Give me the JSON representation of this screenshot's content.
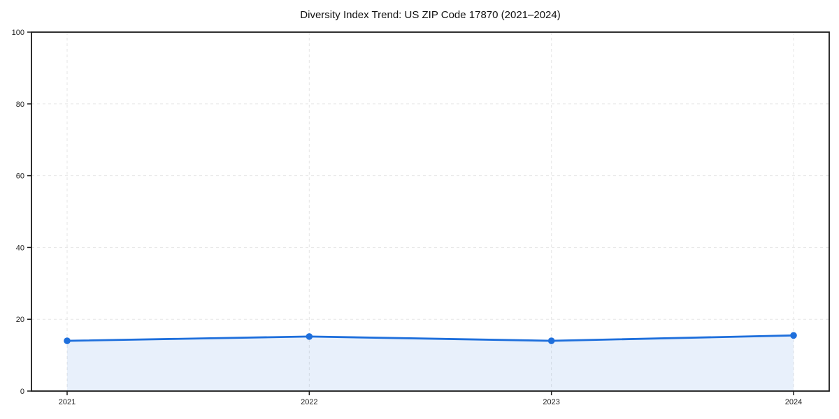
{
  "chart_data": {
    "type": "line",
    "subtype": "area-filled-line-with-markers",
    "title": "Diversity Index Trend: US ZIP Code 17870 (2021–2024)",
    "xlabel": "",
    "ylabel": "",
    "categories": [
      "2021",
      "2022",
      "2023",
      "2024"
    ],
    "series": [
      {
        "name": "Diversity Index",
        "values": [
          14.0,
          15.2,
          14.0,
          15.5
        ]
      }
    ],
    "ylim": [
      0,
      100
    ],
    "yticks": [
      0,
      20,
      40,
      60,
      80,
      100
    ],
    "grid": "dashed-both-axes",
    "legend_position": "none",
    "colors": {
      "line": "#1e6fdc",
      "marker": "#1e6fdc",
      "area_fill": "#1e6fdc",
      "area_fill_opacity": "0.10",
      "gridline": "#e5e5e5",
      "spine": "#1a1a1a",
      "tick_text": "#222222",
      "title_text": "#111111",
      "background": "#ffffff"
    }
  },
  "layout_note_values_visible_only": true
}
